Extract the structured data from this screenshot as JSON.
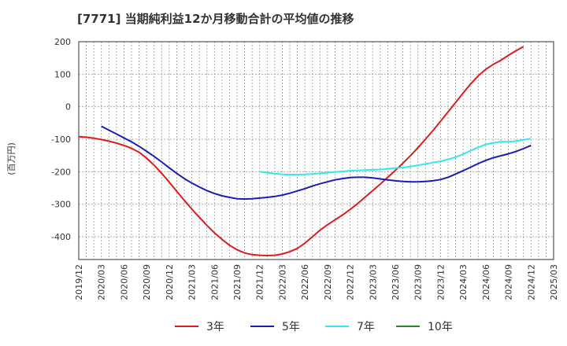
{
  "chart_data": {
    "type": "line",
    "title": "[7771]  当期純利益12か月移動合計の平均値の推移",
    "ylabel": "(百万円)",
    "xlabel": "",
    "ylim": [
      -470,
      200
    ],
    "yticks": [
      200,
      100,
      0,
      -100,
      -200,
      -300,
      -400
    ],
    "ytick_labels": [
      "200",
      "100",
      "0",
      "-100",
      "-200",
      "-300",
      "-400"
    ],
    "x_ticks": [
      "2019/12",
      "2020/03",
      "2020/06",
      "2020/09",
      "2020/12",
      "2021/03",
      "2021/06",
      "2021/09",
      "2021/12",
      "2022/03",
      "2022/06",
      "2022/09",
      "2022/12",
      "2023/03",
      "2023/06",
      "2023/09",
      "2023/12",
      "2024/03",
      "2024/06",
      "2024/09",
      "2024/12",
      "2025/03"
    ],
    "grid": true,
    "legend_position": "bottom",
    "series": [
      {
        "name": "3年",
        "color": "#dd1c1c",
        "points": [
          [
            "2019/12",
            -92
          ],
          [
            "2020/01",
            -94
          ],
          [
            "2020/02",
            -97
          ],
          [
            "2020/03",
            -101
          ],
          [
            "2020/04",
            -106
          ],
          [
            "2020/05",
            -112
          ],
          [
            "2020/06",
            -119
          ],
          [
            "2020/07",
            -128
          ],
          [
            "2020/08",
            -140
          ],
          [
            "2020/09",
            -158
          ],
          [
            "2020/10",
            -180
          ],
          [
            "2020/11",
            -205
          ],
          [
            "2020/12",
            -232
          ],
          [
            "2021/01",
            -260
          ],
          [
            "2021/02",
            -288
          ],
          [
            "2021/03",
            -315
          ],
          [
            "2021/04",
            -340
          ],
          [
            "2021/05",
            -365
          ],
          [
            "2021/06",
            -388
          ],
          [
            "2021/07",
            -408
          ],
          [
            "2021/08",
            -426
          ],
          [
            "2021/09",
            -440
          ],
          [
            "2021/10",
            -450
          ],
          [
            "2021/11",
            -455
          ],
          [
            "2021/12",
            -457
          ],
          [
            "2022/01",
            -458
          ],
          [
            "2022/02",
            -457
          ],
          [
            "2022/03",
            -453
          ],
          [
            "2022/04",
            -446
          ],
          [
            "2022/05",
            -436
          ],
          [
            "2022/06",
            -420
          ],
          [
            "2022/07",
            -400
          ],
          [
            "2022/08",
            -380
          ],
          [
            "2022/09",
            -363
          ],
          [
            "2022/10",
            -348
          ],
          [
            "2022/11",
            -333
          ],
          [
            "2022/12",
            -316
          ],
          [
            "2023/01",
            -298
          ],
          [
            "2023/02",
            -278
          ],
          [
            "2023/03",
            -258
          ],
          [
            "2023/04",
            -238
          ],
          [
            "2023/05",
            -217
          ],
          [
            "2023/06",
            -196
          ],
          [
            "2023/07",
            -174
          ],
          [
            "2023/08",
            -151
          ],
          [
            "2023/09",
            -126
          ],
          [
            "2023/10",
            -100
          ],
          [
            "2023/11",
            -73
          ],
          [
            "2023/12",
            -45
          ],
          [
            "2024/01",
            -16
          ],
          [
            "2024/02",
            13
          ],
          [
            "2024/03",
            42
          ],
          [
            "2024/04",
            70
          ],
          [
            "2024/05",
            95
          ],
          [
            "2024/06",
            115
          ],
          [
            "2024/07",
            130
          ],
          [
            "2024/08",
            143
          ],
          [
            "2024/09",
            158
          ],
          [
            "2024/10",
            172
          ],
          [
            "2024/11",
            185
          ]
        ]
      },
      {
        "name": "5年",
        "color": "#1c1cb4",
        "points": [
          [
            "2020/03",
            -60
          ],
          [
            "2020/04",
            -72
          ],
          [
            "2020/05",
            -84
          ],
          [
            "2020/06",
            -96
          ],
          [
            "2020/07",
            -108
          ],
          [
            "2020/08",
            -122
          ],
          [
            "2020/09",
            -137
          ],
          [
            "2020/10",
            -153
          ],
          [
            "2020/11",
            -170
          ],
          [
            "2020/12",
            -188
          ],
          [
            "2021/01",
            -205
          ],
          [
            "2021/02",
            -221
          ],
          [
            "2021/03",
            -235
          ],
          [
            "2021/04",
            -247
          ],
          [
            "2021/05",
            -258
          ],
          [
            "2021/06",
            -267
          ],
          [
            "2021/07",
            -274
          ],
          [
            "2021/08",
            -279
          ],
          [
            "2021/09",
            -283
          ],
          [
            "2021/10",
            -284
          ],
          [
            "2021/11",
            -283
          ],
          [
            "2021/12",
            -281
          ],
          [
            "2022/01",
            -279
          ],
          [
            "2022/02",
            -276
          ],
          [
            "2022/03",
            -272
          ],
          [
            "2022/04",
            -266
          ],
          [
            "2022/05",
            -259
          ],
          [
            "2022/06",
            -252
          ],
          [
            "2022/07",
            -244
          ],
          [
            "2022/08",
            -237
          ],
          [
            "2022/09",
            -231
          ],
          [
            "2022/10",
            -225
          ],
          [
            "2022/11",
            -221
          ],
          [
            "2022/12",
            -218
          ],
          [
            "2023/01",
            -217
          ],
          [
            "2023/02",
            -217
          ],
          [
            "2023/03",
            -219
          ],
          [
            "2023/04",
            -222
          ],
          [
            "2023/05",
            -225
          ],
          [
            "2023/06",
            -228
          ],
          [
            "2023/07",
            -230
          ],
          [
            "2023/08",
            -231
          ],
          [
            "2023/09",
            -231
          ],
          [
            "2023/10",
            -230
          ],
          [
            "2023/11",
            -228
          ],
          [
            "2023/12",
            -224
          ],
          [
            "2024/01",
            -217
          ],
          [
            "2024/02",
            -207
          ],
          [
            "2024/03",
            -197
          ],
          [
            "2024/04",
            -186
          ],
          [
            "2024/05",
            -175
          ],
          [
            "2024/06",
            -165
          ],
          [
            "2024/07",
            -157
          ],
          [
            "2024/08",
            -151
          ],
          [
            "2024/09",
            -145
          ],
          [
            "2024/10",
            -138
          ],
          [
            "2024/11",
            -129
          ],
          [
            "2024/12",
            -119
          ]
        ]
      },
      {
        "name": "7年",
        "color": "#33e8f0",
        "points": [
          [
            "2021/12",
            -200
          ],
          [
            "2022/01",
            -203
          ],
          [
            "2022/02",
            -206
          ],
          [
            "2022/03",
            -208
          ],
          [
            "2022/04",
            -209
          ],
          [
            "2022/05",
            -209
          ],
          [
            "2022/06",
            -208
          ],
          [
            "2022/07",
            -207
          ],
          [
            "2022/08",
            -205
          ],
          [
            "2022/09",
            -203
          ],
          [
            "2022/10",
            -201
          ],
          [
            "2022/11",
            -199
          ],
          [
            "2022/12",
            -197
          ],
          [
            "2023/01",
            -196
          ],
          [
            "2023/02",
            -195
          ],
          [
            "2023/03",
            -194
          ],
          [
            "2023/04",
            -193
          ],
          [
            "2023/05",
            -191
          ],
          [
            "2023/06",
            -189
          ],
          [
            "2023/07",
            -187
          ],
          [
            "2023/08",
            -184
          ],
          [
            "2023/09",
            -180
          ],
          [
            "2023/10",
            -176
          ],
          [
            "2023/11",
            -172
          ],
          [
            "2023/12",
            -168
          ],
          [
            "2024/01",
            -162
          ],
          [
            "2024/02",
            -155
          ],
          [
            "2024/03",
            -146
          ],
          [
            "2024/04",
            -135
          ],
          [
            "2024/05",
            -125
          ],
          [
            "2024/06",
            -116
          ],
          [
            "2024/07",
            -111
          ],
          [
            "2024/08",
            -108
          ],
          [
            "2024/09",
            -108
          ],
          [
            "2024/10",
            -106
          ],
          [
            "2024/11",
            -102
          ],
          [
            "2024/12",
            -98
          ]
        ]
      },
      {
        "name": "10年",
        "color": "#228b22",
        "points": []
      }
    ]
  }
}
